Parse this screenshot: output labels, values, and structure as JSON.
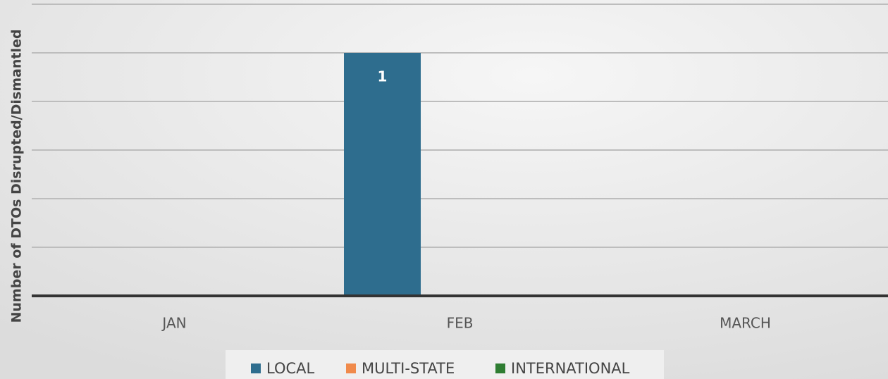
{
  "chart_data": {
    "type": "bar",
    "ylabel": "Number of DTOs Disrupted/Dismantled",
    "categories": [
      "JAN",
      "FEB",
      "MARCH"
    ],
    "series": [
      {
        "name": "LOCAL",
        "color": "#2e6d8e",
        "values": [
          0,
          1,
          0
        ]
      },
      {
        "name": "MULTI-STATE",
        "color": "#f08a4b",
        "values": [
          0,
          0,
          0
        ]
      },
      {
        "name": "INTERNATIONAL",
        "color": "#2e7d32",
        "values": [
          0,
          0,
          0
        ]
      }
    ],
    "ylim": [
      0,
      1.2
    ],
    "yticks": [
      0,
      0.2,
      0.4,
      0.6,
      0.8,
      1,
      1.2
    ],
    "grid": true,
    "legend": "bottom"
  }
}
